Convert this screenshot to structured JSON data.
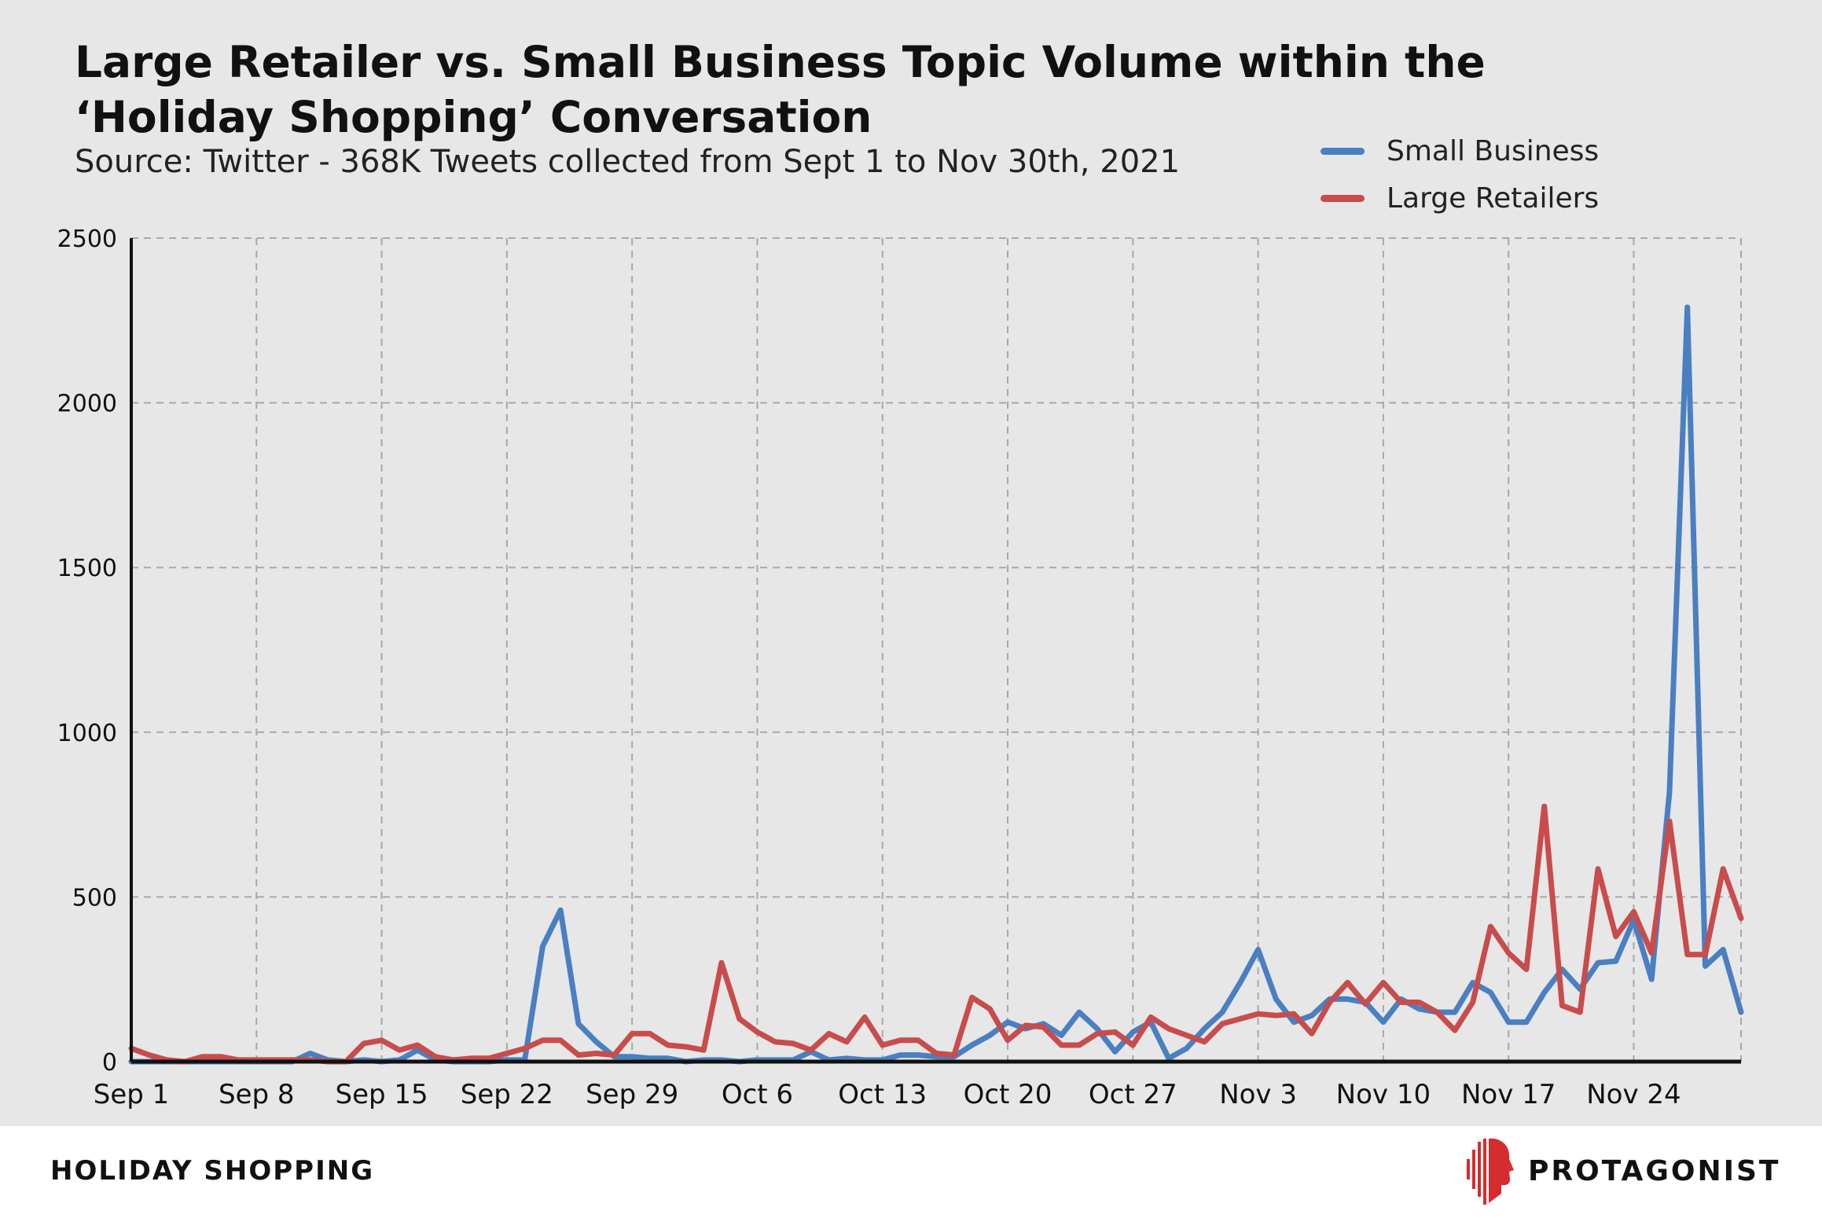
{
  "title": "Large Retailer vs. Small Business Topic Volume within the ‘Holiday Shopping’ Conversation",
  "subtitle": "Source: Twitter - 368K Tweets collected from Sept 1 to Nov 30th, 2021",
  "footer_label": "HOLIDAY SHOPPING",
  "brand": {
    "name": "PROTAGONIST",
    "logo_icon": "profile-head-logo-icon",
    "logo_color": "#d62b2f"
  },
  "colors": {
    "small_business": "#4a7fc1",
    "large_retailers": "#c84c4c",
    "panel": "#e6e7e6",
    "grid": "#a8a8a8"
  },
  "chart_data": {
    "type": "line",
    "title": "Large Retailer vs. Small Business Topic Volume within the ‘Holiday Shopping’ Conversation",
    "xlabel": "",
    "ylabel": "",
    "ylim": [
      0,
      2500
    ],
    "yticks": [
      0,
      500,
      1000,
      1500,
      2000,
      2500
    ],
    "x_start": "Sep 1",
    "x_end": "Nov 30",
    "xtick_labels": [
      "Sep 1",
      "Sep 8",
      "Sep 15",
      "Sep 22",
      "Sep 29",
      "Oct 6",
      "Oct 13",
      "Oct 20",
      "Oct 27",
      "Nov 3",
      "Nov 10",
      "Nov 17",
      "Nov 24"
    ],
    "xtick_day_index": [
      0,
      7,
      14,
      21,
      28,
      35,
      42,
      49,
      56,
      63,
      70,
      77,
      84
    ],
    "grid": true,
    "legend_position": "top-right",
    "series": [
      {
        "name": "Small Business",
        "values": [
          0,
          0,
          0,
          0,
          0,
          0,
          0,
          0,
          0,
          0,
          25,
          5,
          0,
          5,
          0,
          5,
          35,
          5,
          0,
          0,
          0,
          5,
          5,
          350,
          460,
          115,
          60,
          15,
          15,
          10,
          10,
          0,
          5,
          5,
          0,
          5,
          5,
          5,
          30,
          5,
          10,
          5,
          5,
          20,
          20,
          15,
          15,
          50,
          80,
          120,
          100,
          115,
          80,
          150,
          100,
          30,
          90,
          120,
          10,
          40,
          100,
          150,
          240,
          340,
          190,
          120,
          140,
          190,
          190,
          180,
          120,
          190,
          160,
          150,
          150,
          240,
          210,
          120,
          120,
          210,
          280,
          220,
          300,
          305,
          430,
          250,
          820,
          2290,
          290,
          340,
          150
        ]
      },
      {
        "name": "Large Retailers",
        "values": [
          40,
          20,
          5,
          0,
          15,
          15,
          5,
          5,
          5,
          5,
          5,
          0,
          0,
          55,
          65,
          35,
          50,
          15,
          5,
          10,
          10,
          25,
          40,
          65,
          65,
          20,
          25,
          20,
          85,
          85,
          50,
          45,
          35,
          300,
          130,
          90,
          60,
          55,
          35,
          85,
          60,
          135,
          50,
          65,
          65,
          25,
          20,
          195,
          160,
          65,
          110,
          105,
          50,
          50,
          85,
          90,
          50,
          135,
          100,
          80,
          60,
          115,
          130,
          145,
          140,
          145,
          85,
          180,
          240,
          175,
          240,
          180,
          180,
          150,
          95,
          180,
          410,
          330,
          280,
          775,
          170,
          150,
          585,
          380,
          455,
          330,
          730,
          325,
          325,
          585,
          435
        ]
      }
    ]
  }
}
